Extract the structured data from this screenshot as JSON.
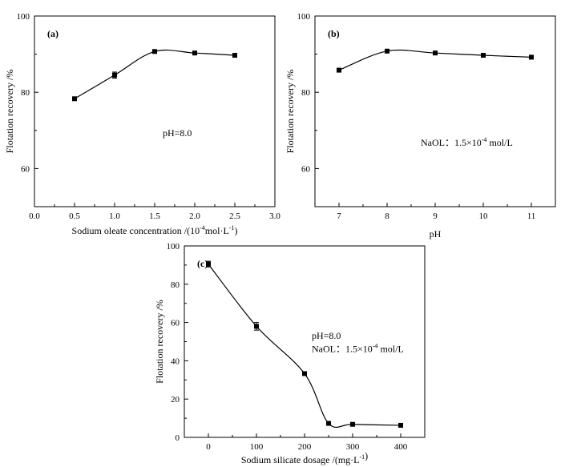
{
  "chart_data": [
    {
      "id": "a",
      "type": "line",
      "panel_label": "(a)",
      "xlabel": "Sodium oleate concentration /(10",
      "xlabel_sup": "-4",
      "xlabel_tail": "mol·L",
      "xlabel_sup2": "-1",
      "xlabel_end": ")",
      "ylabel": "Flotation recovery /%",
      "xlim": [
        0,
        3.0
      ],
      "ylim": [
        50,
        100
      ],
      "xticks": [
        0.0,
        0.5,
        1.0,
        1.5,
        2.0,
        2.5,
        3.0
      ],
      "xtick_labels": [
        "0.0",
        "0.5",
        "1.0",
        "1.5",
        "2.0",
        "2.5",
        "3.0"
      ],
      "yticks": [
        60,
        80,
        100
      ],
      "ytick_labels": [
        "60",
        "80",
        "100"
      ],
      "x": [
        0.5,
        1.0,
        1.5,
        2.0,
        2.5
      ],
      "y": [
        78.3,
        84.5,
        90.7,
        90.3,
        89.7
      ],
      "err": [
        0,
        0.8,
        0,
        0,
        0
      ],
      "annotations": [
        {
          "text": "pH=8.0",
          "x": 1.6,
          "y": 68.5
        }
      ]
    },
    {
      "id": "b",
      "type": "line",
      "panel_label": "(b)",
      "xlabel": "pH",
      "ylabel": "Flotation recovery /%",
      "xlim": [
        6.5,
        11.5
      ],
      "ylim": [
        50,
        100
      ],
      "xticks": [
        7,
        8,
        9,
        10,
        11
      ],
      "xtick_labels": [
        "7",
        "8",
        "9",
        "10",
        "11"
      ],
      "yticks": [
        60,
        80,
        100
      ],
      "ytick_labels": [
        "60",
        "80",
        "100"
      ],
      "x": [
        7,
        8,
        9,
        10,
        11
      ],
      "y": [
        85.8,
        90.8,
        90.3,
        89.7,
        89.2
      ],
      "err": [
        0,
        0,
        0,
        0,
        0
      ],
      "annotations": [
        {
          "text": "NaOL：1.5×10",
          "sup": "-4",
          "tail": " mol/L",
          "x": 8.7,
          "y": 66
        }
      ]
    },
    {
      "id": "c",
      "type": "line",
      "panel_label": "(c)",
      "xlabel": "Sodium silicate dosage /(mg·L",
      "xlabel_sup": "-1",
      "xlabel_end": ")",
      "ylabel": "Flotation recovery /%",
      "xlim": [
        -50,
        450
      ],
      "ylim": [
        0,
        100
      ],
      "xticks": [
        0,
        100,
        200,
        300,
        400
      ],
      "xtick_labels": [
        "0",
        "100",
        "200",
        "300",
        "400"
      ],
      "yticks": [
        0,
        20,
        40,
        60,
        80,
        100
      ],
      "ytick_labels": [
        "0",
        "20",
        "40",
        "60",
        "80",
        "100"
      ],
      "x": [
        0,
        100,
        200,
        250,
        300,
        400
      ],
      "y": [
        90.5,
        58,
        33.3,
        7.3,
        6.8,
        6.3
      ],
      "err": [
        1.5,
        2.0,
        0,
        0,
        0,
        0
      ],
      "annotations": [
        {
          "text": "pH=8.0",
          "x": 215,
          "y": 51.5
        },
        {
          "text": "NaOL：1.5×10",
          "sup": "-4",
          "tail": " mol/L",
          "x": 215,
          "y": 44.5
        }
      ]
    }
  ]
}
